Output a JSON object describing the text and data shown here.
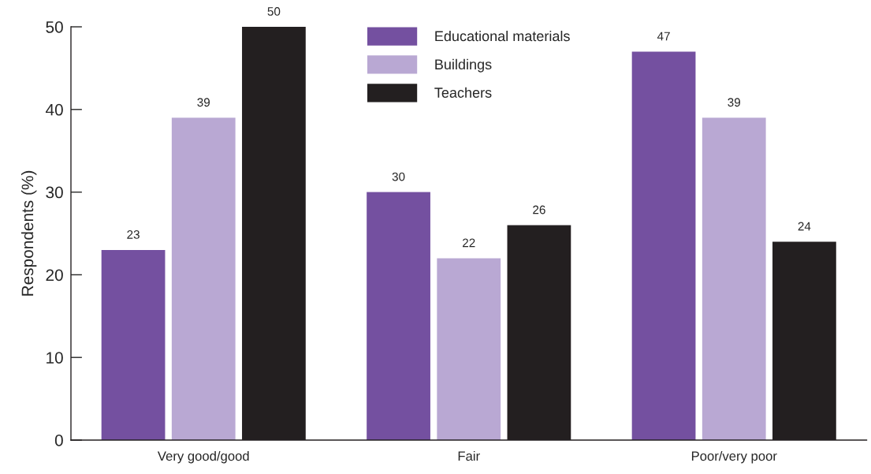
{
  "chart_data": {
    "type": "bar",
    "ylabel": "Respondents (%)",
    "categories": [
      "Very good/good",
      "Fair",
      "Poor/very poor"
    ],
    "series": [
      {
        "name": "Educational materials",
        "color": "#7450a0",
        "values": [
          23,
          30,
          47
        ]
      },
      {
        "name": "Buildings",
        "color": "#b9a8d3",
        "values": [
          39,
          22,
          39
        ]
      },
      {
        "name": "Teachers",
        "color": "#231f20",
        "values": [
          50,
          26,
          24
        ]
      }
    ],
    "ylim": [
      0,
      50
    ],
    "yticks": [
      0,
      10,
      20,
      30,
      40,
      50
    ],
    "data_labels": true,
    "legend": "top",
    "grid": false
  }
}
